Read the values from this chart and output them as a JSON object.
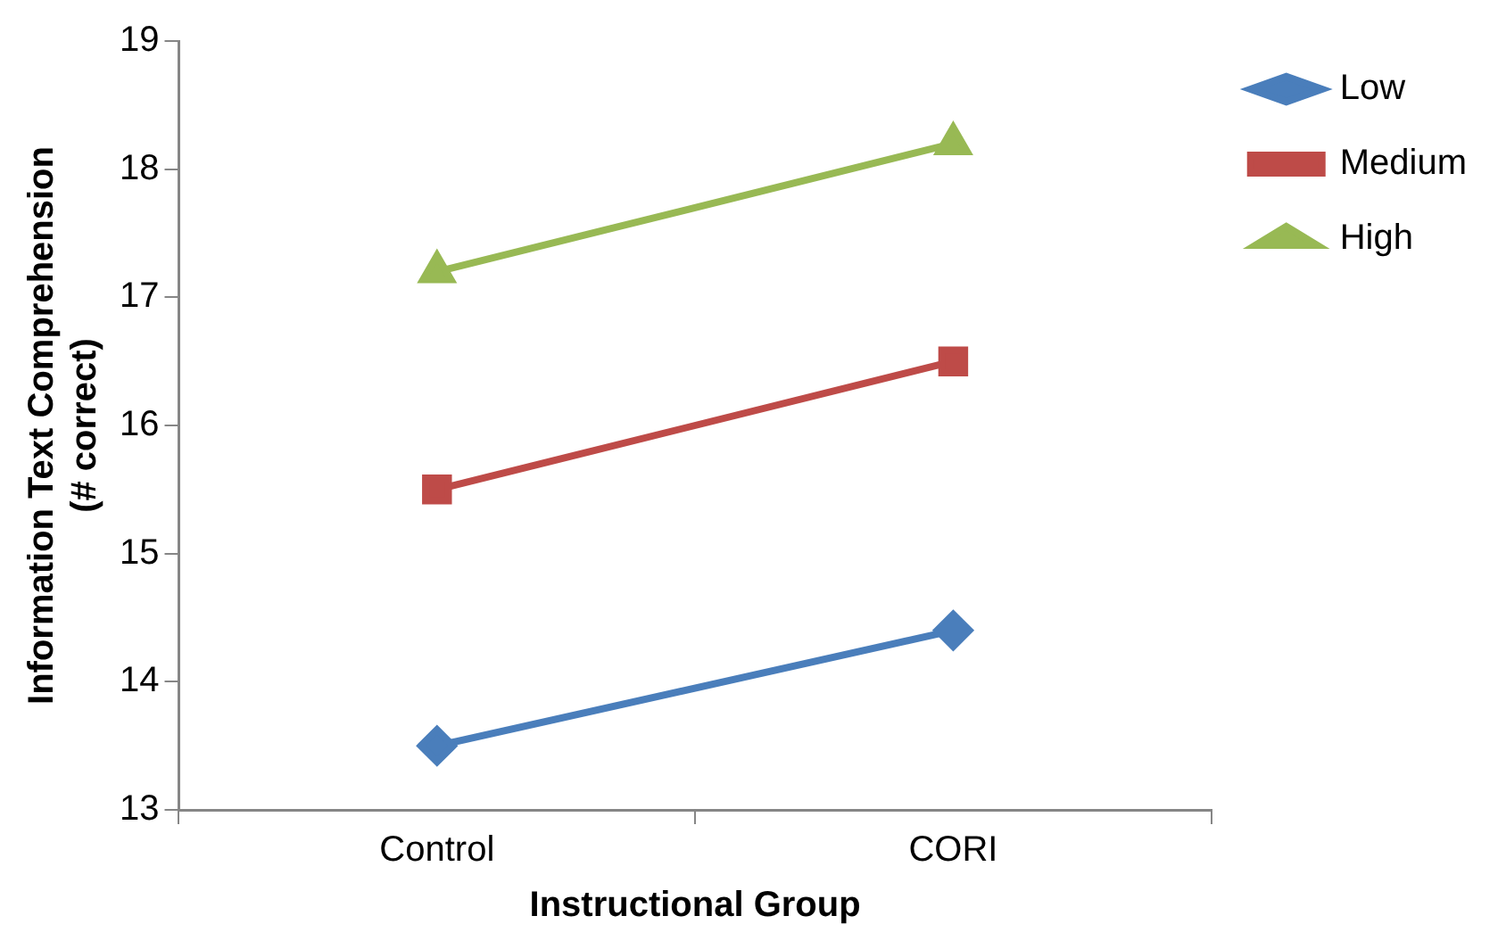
{
  "chart_data": {
    "type": "line",
    "xlabel": "Instructional Group",
    "ylabel": "Information Text Comprehension\n(# correct)",
    "categories": [
      "Control",
      "CORI"
    ],
    "series": [
      {
        "name": "Low",
        "color": "#4a7ebb",
        "marker": "diamond",
        "values": [
          13.5,
          14.4
        ]
      },
      {
        "name": "Medium",
        "color": "#be4b48",
        "marker": "square",
        "values": [
          15.5,
          16.5
        ]
      },
      {
        "name": "High",
        "color": "#98b954",
        "marker": "triangle",
        "values": [
          17.2,
          18.2
        ]
      }
    ],
    "ylim": [
      13,
      19
    ],
    "yticks": [
      13,
      14,
      15,
      16,
      17,
      18,
      19
    ],
    "grid": false,
    "legend": "top right"
  }
}
